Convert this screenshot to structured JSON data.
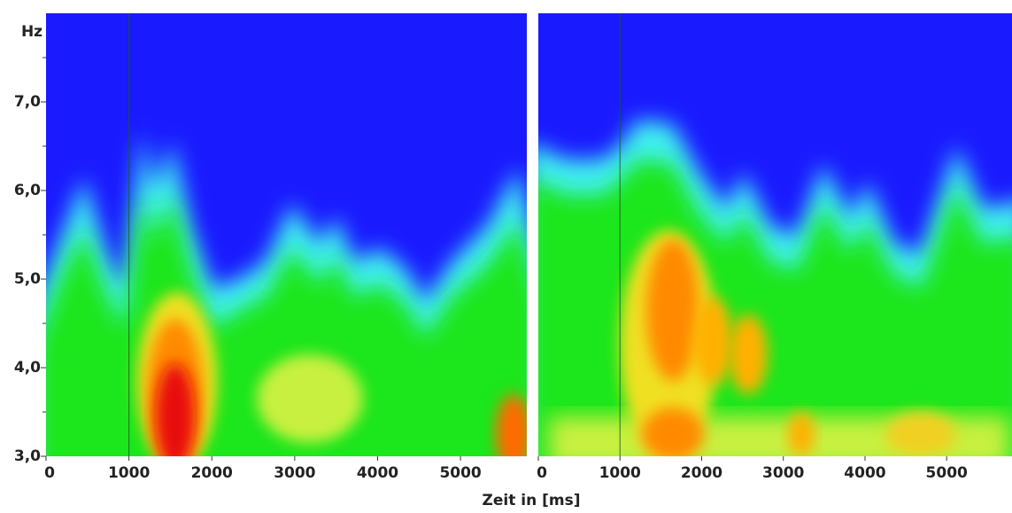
{
  "chart_data": [
    {
      "type": "heatmap",
      "ylabel": "Hz",
      "xlim": [
        0,
        5800
      ],
      "xticks": [
        0,
        1000,
        2000,
        3000,
        4000,
        5000
      ],
      "ylim": [
        3,
        8
      ],
      "yticks": [
        {
          "value": 3,
          "label": "3,0"
        },
        {
          "value": 4,
          "label": "4,0"
        },
        {
          "value": 5,
          "label": "5,0"
        },
        {
          "value": 6,
          "label": "6,0"
        },
        {
          "value": 7,
          "label": "7,0"
        }
      ],
      "yminorticks": [
        3.5,
        4.5,
        5.5,
        6.5,
        7.5
      ],
      "vline": 1000
    },
    {
      "type": "heatmap",
      "xlim": [
        0,
        5800
      ],
      "xticks": [
        0,
        1000,
        2000,
        3000,
        4000,
        5000
      ],
      "ylim": [
        3,
        8
      ],
      "vline": 1000
    }
  ],
  "x_axis_label": "Zeit in [ms]"
}
